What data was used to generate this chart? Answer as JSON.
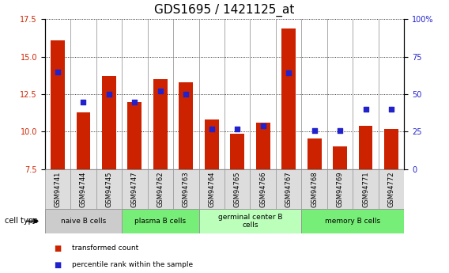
{
  "title": "GDS1695 / 1421125_at",
  "samples": [
    "GSM94741",
    "GSM94744",
    "GSM94745",
    "GSM94747",
    "GSM94762",
    "GSM94763",
    "GSM94764",
    "GSM94765",
    "GSM94766",
    "GSM94767",
    "GSM94768",
    "GSM94769",
    "GSM94771",
    "GSM94772"
  ],
  "bar_values": [
    16.1,
    11.3,
    13.7,
    12.0,
    13.5,
    13.3,
    10.8,
    9.85,
    10.6,
    16.9,
    9.55,
    9.0,
    10.4,
    10.2
  ],
  "dot_values": [
    65,
    45,
    50,
    45,
    52,
    50,
    27,
    27,
    29,
    64,
    26,
    26,
    40,
    40
  ],
  "bar_color": "#cc2200",
  "dot_color": "#2222cc",
  "ylim_left": [
    7.5,
    17.5
  ],
  "ylim_right": [
    0,
    100
  ],
  "yticks_left": [
    7.5,
    10.0,
    12.5,
    15.0,
    17.5
  ],
  "yticks_right": [
    0,
    25,
    50,
    75,
    100
  ],
  "ytick_labels_right": [
    "0",
    "25",
    "50",
    "75",
    "100%"
  ],
  "cell_groups": [
    {
      "label": "naive B cells",
      "start": 0,
      "end": 2,
      "color": "#cccccc"
    },
    {
      "label": "plasma B cells",
      "start": 3,
      "end": 5,
      "color": "#77ee77"
    },
    {
      "label": "germinal center B\ncells",
      "start": 6,
      "end": 9,
      "color": "#bbffbb"
    },
    {
      "label": "memory B cells",
      "start": 10,
      "end": 13,
      "color": "#77ee77"
    }
  ],
  "cell_type_label": "cell type",
  "legend_bar_label": "transformed count",
  "legend_dot_label": "percentile rank within the sample",
  "background_color": "#ffffff",
  "title_fontsize": 11,
  "tick_fontsize": 7,
  "bar_width": 0.55
}
